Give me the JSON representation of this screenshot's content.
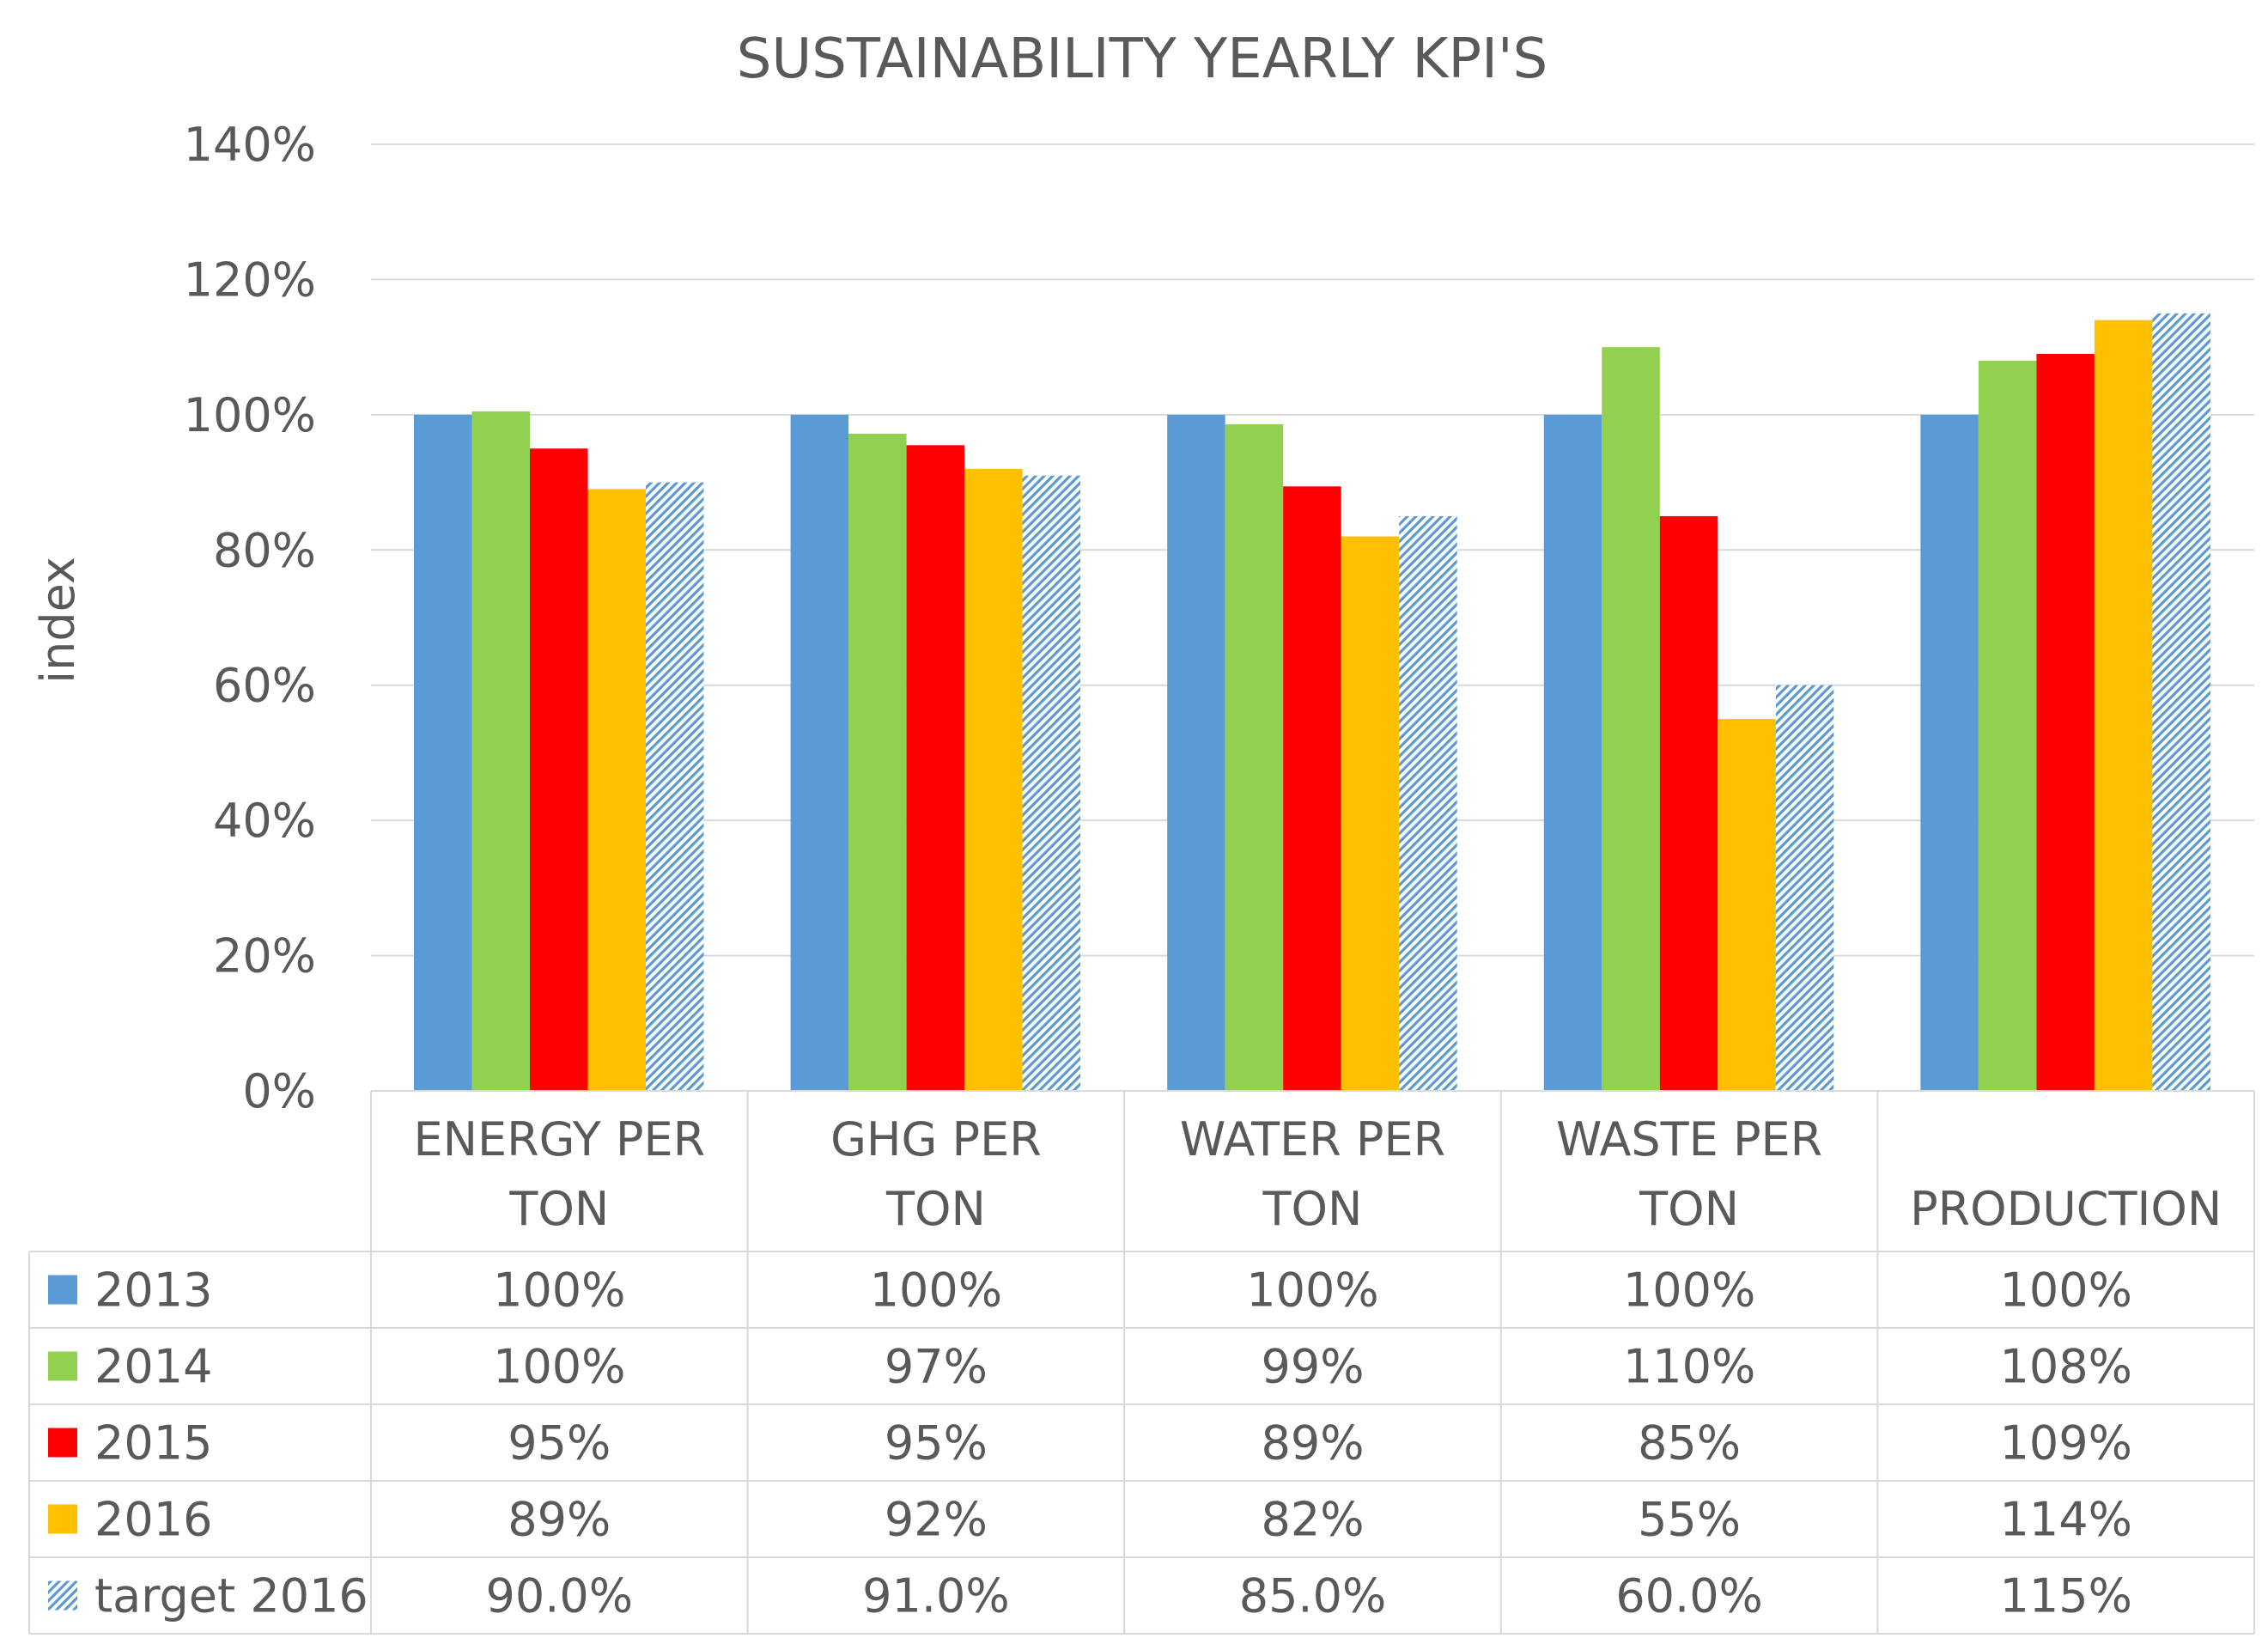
{
  "chart_data": {
    "type": "bar",
    "title": "SUSTAINABILITY YEARLY KPI'S",
    "xlabel": "",
    "ylabel": "index",
    "ylim": [
      0,
      140
    ],
    "yticks": [
      "0%",
      "20%",
      "40%",
      "60%",
      "80%",
      "100%",
      "120%",
      "140%"
    ],
    "ytick_values": [
      0,
      20,
      40,
      60,
      80,
      100,
      120,
      140
    ],
    "grid": true,
    "legend_placement": "data-table-left",
    "categories": [
      [
        "ENERGY PER",
        "TON"
      ],
      [
        "GHG PER",
        "TON"
      ],
      [
        "WATER PER",
        "TON"
      ],
      [
        "WASTE PER",
        "TON"
      ],
      [
        "",
        "PRODUCTION"
      ]
    ],
    "series": [
      {
        "name": "2013",
        "color": "#5b9bd5",
        "pattern": "solid",
        "values": [
          100,
          100,
          100,
          100,
          100
        ],
        "labels": [
          "100%",
          "100%",
          "100%",
          "100%",
          "100%"
        ]
      },
      {
        "name": "2014",
        "color": "#92d050",
        "pattern": "solid",
        "values": [
          100.5,
          97.2,
          98.6,
          110,
          108
        ],
        "labels": [
          "100%",
          "97%",
          "99%",
          "110%",
          "108%"
        ]
      },
      {
        "name": "2015",
        "color": "#ff0000",
        "pattern": "solid",
        "values": [
          95,
          95.5,
          89.4,
          85,
          109
        ],
        "labels": [
          "95%",
          "95%",
          "89%",
          "85%",
          "109%"
        ]
      },
      {
        "name": "2016",
        "color": "#ffc000",
        "pattern": "solid",
        "values": [
          89,
          92,
          82,
          55,
          114
        ],
        "labels": [
          "89%",
          "92%",
          "82%",
          "55%",
          "114%"
        ]
      },
      {
        "name": "target 2016",
        "color": "#5b9bd5",
        "pattern": "hatched",
        "values": [
          90,
          91,
          85,
          60,
          115
        ],
        "labels": [
          "90.0%",
          "91.0%",
          "85.0%",
          "60.0%",
          "115%"
        ]
      }
    ]
  },
  "colors": {
    "text": "#595959",
    "grid": "#d9d9d9",
    "background": "#ffffff"
  }
}
